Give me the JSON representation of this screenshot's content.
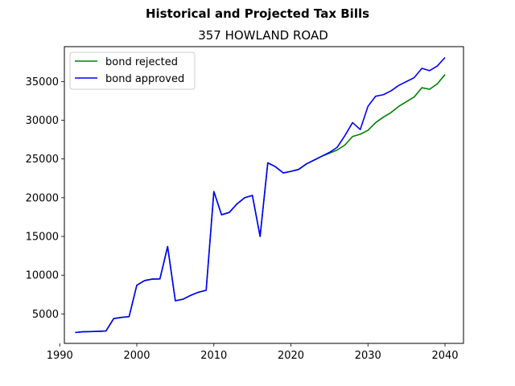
{
  "chart_data": {
    "type": "line",
    "title": "Historical and Projected Tax Bills",
    "subtitle": "357 HOWLAND ROAD",
    "xlabel": "",
    "ylabel": "",
    "xlim": [
      1990.6,
      2042.4
    ],
    "ylim": [
      1200,
      39500
    ],
    "xticks": [
      1990,
      2000,
      2010,
      2020,
      2030,
      2040
    ],
    "yticks": [
      5000,
      10000,
      15000,
      20000,
      25000,
      30000,
      35000
    ],
    "grid": false,
    "legend_position": "upper-left",
    "series": [
      {
        "name": "bond rejected",
        "color": "#008000",
        "x": [
          1992,
          1993,
          1994,
          1995,
          1996,
          1997,
          1998,
          1999,
          2000,
          2001,
          2002,
          2003,
          2004,
          2005,
          2006,
          2007,
          2008,
          2009,
          2010,
          2011,
          2012,
          2013,
          2014,
          2015,
          2016,
          2017,
          2018,
          2019,
          2020,
          2021,
          2022,
          2023,
          2024,
          2025,
          2026,
          2027,
          2028,
          2029,
          2030,
          2031,
          2032,
          2033,
          2034,
          2035,
          2036,
          2037,
          2038,
          2039,
          2040
        ],
        "y": [
          2600,
          2700,
          2720,
          2750,
          2800,
          4400,
          4550,
          4650,
          8700,
          9300,
          9500,
          9520,
          13700,
          6700,
          6900,
          7400,
          7800,
          8050,
          20800,
          17800,
          18100,
          19200,
          20000,
          20300,
          15000,
          24500,
          24000,
          23200,
          23400,
          23650,
          24350,
          24850,
          25350,
          25750,
          26150,
          26800,
          27900,
          28200,
          28700,
          29700,
          30400,
          31000,
          31800,
          32400,
          33000,
          34200,
          34000,
          34700,
          35900
        ]
      },
      {
        "name": "bond approved",
        "color": "#0000ff",
        "x": [
          1992,
          1993,
          1994,
          1995,
          1996,
          1997,
          1998,
          1999,
          2000,
          2001,
          2002,
          2003,
          2004,
          2005,
          2006,
          2007,
          2008,
          2009,
          2010,
          2011,
          2012,
          2013,
          2014,
          2015,
          2016,
          2017,
          2018,
          2019,
          2020,
          2021,
          2022,
          2023,
          2024,
          2025,
          2026,
          2027,
          2028,
          2029,
          2030,
          2031,
          2032,
          2033,
          2034,
          2035,
          2036,
          2037,
          2038,
          2039,
          2040
        ],
        "y": [
          2600,
          2700,
          2720,
          2750,
          2800,
          4400,
          4550,
          4650,
          8700,
          9300,
          9500,
          9520,
          13700,
          6700,
          6900,
          7400,
          7800,
          8050,
          20800,
          17800,
          18100,
          19200,
          20000,
          20300,
          15000,
          24500,
          24000,
          23200,
          23400,
          23650,
          24350,
          24850,
          25350,
          25850,
          26500,
          28000,
          29700,
          28800,
          31800,
          33100,
          33300,
          33800,
          34500,
          35000,
          35500,
          36700,
          36400,
          37000,
          38100
        ]
      }
    ]
  }
}
